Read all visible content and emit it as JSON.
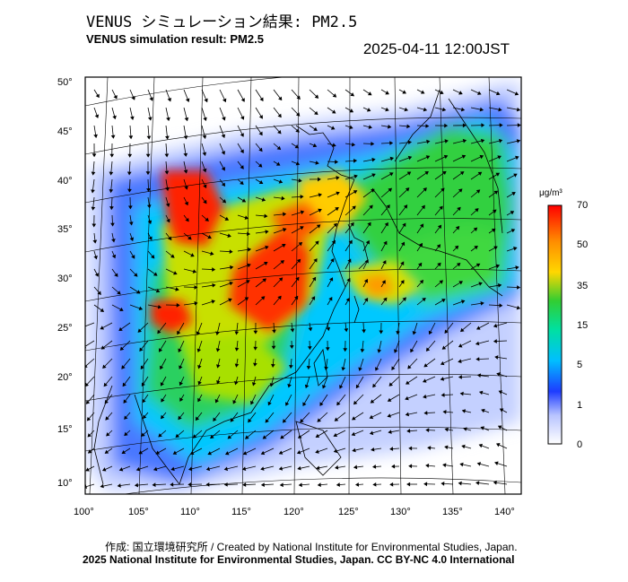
{
  "title_jp": "VENUS シミュレーション結果: PM2.5",
  "title_en": "VENUS simulation result: PM2.5",
  "timestamp": "2025-04-11 12:00JST",
  "unit": "μg/m³",
  "colorbar": {
    "labels": [
      "70",
      "50",
      "35",
      "15",
      "5",
      "1",
      "0"
    ],
    "colors": [
      "#ff0000",
      "#ff8c00",
      "#ffd700",
      "#32cd32",
      "#00bfff",
      "#1e3cff",
      "#ffffff"
    ]
  },
  "lat_labels": [
    "50°",
    "45°",
    "40°",
    "35°",
    "30°",
    "25°",
    "20°",
    "15°",
    "10°"
  ],
  "lon_labels": [
    "100°",
    "105°",
    "110°",
    "115°",
    "120°",
    "125°",
    "130°",
    "135°",
    "140°"
  ],
  "credit_line1": "作成: 国立環境研究所 / Created by National Institute for Environmental Studies, Japan.",
  "credit_line2": "2025 National Institute for Environmental Studies, Japan. CC BY-NC 4.0 International"
}
